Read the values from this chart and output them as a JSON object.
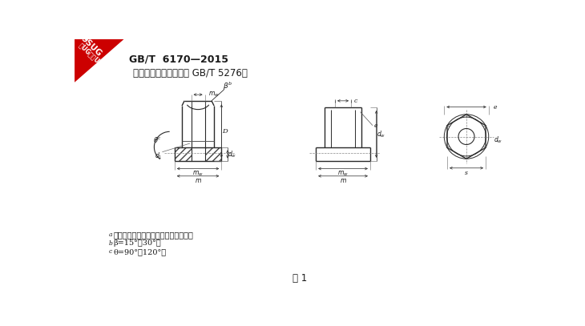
{
  "bg_color": "#ffffff",
  "title": "GB/T  6170—2015",
  "subtitle": "尺寸代号和标注应符合 GB/T 5276。",
  "fig_label": "图 1",
  "note_a_super": "a",
  "note_a_text": "要求垫圈面型式时，应在订单中注明；",
  "note_b_super": "b",
  "note_b_text": "β=15°～30°；",
  "note_c_super": "c",
  "note_c_text": "θ=90°～120°。",
  "watermark_line1": "9SUG",
  "watermark_line2": "学UG就上UG网",
  "line_color": "#2a2a2a",
  "text_color": "#1a1a1a"
}
